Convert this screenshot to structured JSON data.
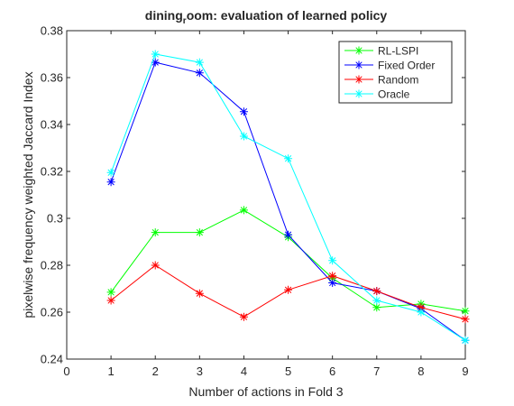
{
  "chart_data": {
    "type": "line",
    "title": {
      "main": "dining",
      "sub": "r",
      "rest": "oom: evaluation of learned policy"
    },
    "xlabel": "Number of actions in Fold 3",
    "ylabel": "pixelwise frequency weighted Jaccard Index",
    "xlim": [
      0,
      9
    ],
    "ylim": [
      0.24,
      0.38
    ],
    "xticks": [
      0,
      1,
      2,
      3,
      4,
      5,
      6,
      7,
      8,
      9
    ],
    "xtick_labels": [
      "0",
      "1",
      "2",
      "3",
      "4",
      "5",
      "6",
      "7",
      "8",
      "9"
    ],
    "yticks": [
      0.24,
      0.26,
      0.28,
      0.3,
      0.32,
      0.34,
      0.36,
      0.38
    ],
    "ytick_labels": [
      "0.24",
      "0.26",
      "0.28",
      "0.3",
      "0.32",
      "0.34",
      "0.36",
      "0.38"
    ],
    "grid": false,
    "legend_position": "top-right",
    "x": [
      1,
      2,
      3,
      4,
      5,
      6,
      7,
      8,
      9
    ],
    "series": [
      {
        "name": "RL-LSPI",
        "color": "#00ff00",
        "values": [
          0.2685,
          0.294,
          0.294,
          0.3035,
          0.292,
          0.2745,
          0.262,
          0.2635,
          0.2605
        ]
      },
      {
        "name": "Fixed Order",
        "color": "#0000ff",
        "values": [
          0.3155,
          0.3665,
          0.362,
          0.3455,
          0.293,
          0.2725,
          0.269,
          0.2615,
          0.248
        ]
      },
      {
        "name": "Random",
        "color": "#ff0000",
        "values": [
          0.265,
          0.28,
          0.268,
          0.258,
          0.2695,
          0.2755,
          0.269,
          0.262,
          0.257
        ]
      },
      {
        "name": "Oracle",
        "color": "#00ffff",
        "values": [
          0.3195,
          0.37,
          0.3665,
          0.335,
          0.3255,
          0.282,
          0.265,
          0.26,
          0.248
        ]
      }
    ]
  }
}
